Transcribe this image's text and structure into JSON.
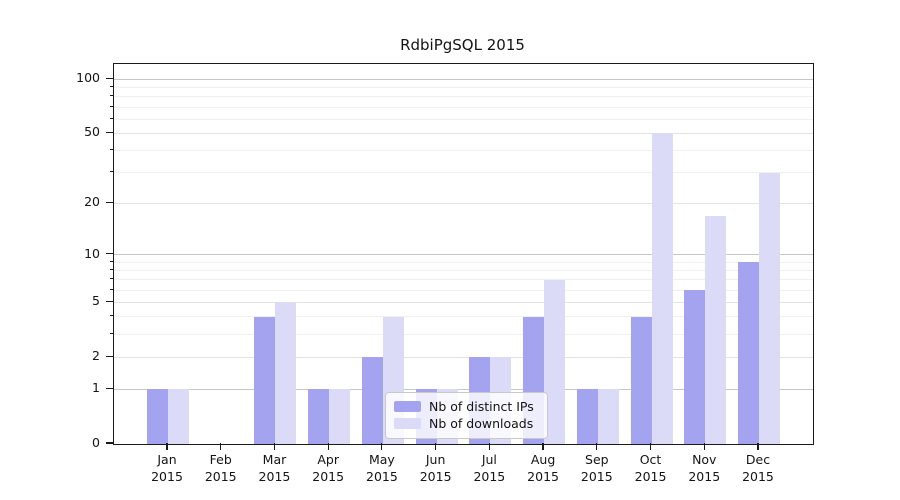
{
  "title": "RdbiPgSQL 2015",
  "legend": {
    "items": [
      {
        "label": "Nb of distinct IPs",
        "color": "#a3a3ef"
      },
      {
        "label": "Nb of downloads",
        "color": "#dbdbf8"
      }
    ]
  },
  "chart_data": {
    "type": "bar",
    "title": "RdbiPgSQL 2015",
    "categories": [
      "Jan",
      "Feb",
      "Mar",
      "Apr",
      "May",
      "Jun",
      "Jul",
      "Aug",
      "Sep",
      "Oct",
      "Nov",
      "Dec"
    ],
    "year_label": "2015",
    "series": [
      {
        "name": "Nb of distinct IPs",
        "color": "#a3a3ef",
        "values": [
          1,
          0,
          4,
          1,
          2,
          1,
          2,
          4,
          1,
          4,
          6,
          9
        ]
      },
      {
        "name": "Nb of downloads",
        "color": "#dbdbf8",
        "values": [
          1,
          0,
          5,
          1,
          4,
          1,
          2,
          7,
          1,
          50,
          17,
          30
        ]
      }
    ],
    "y_scale": "log10(1+x)",
    "y_ticks": [
      0,
      1,
      2,
      5,
      10,
      20,
      50,
      100
    ],
    "y_major_grid": [
      1,
      10,
      100
    ],
    "y_mid_grid": [
      2,
      5,
      20,
      50
    ],
    "y_minor_ticks": [
      3,
      4,
      6,
      7,
      8,
      9,
      30,
      40,
      60,
      70,
      80,
      90
    ],
    "ylim": [
      0,
      122
    ],
    "grid": true,
    "legend_position": "lower center-right inside plot"
  },
  "colors": {
    "background": "#ffffff",
    "axis": "#1a1a1a",
    "grid_major": "#c6c6c6",
    "grid_mid": "#e3e3e3",
    "grid_minor": "#f0f0f0"
  }
}
